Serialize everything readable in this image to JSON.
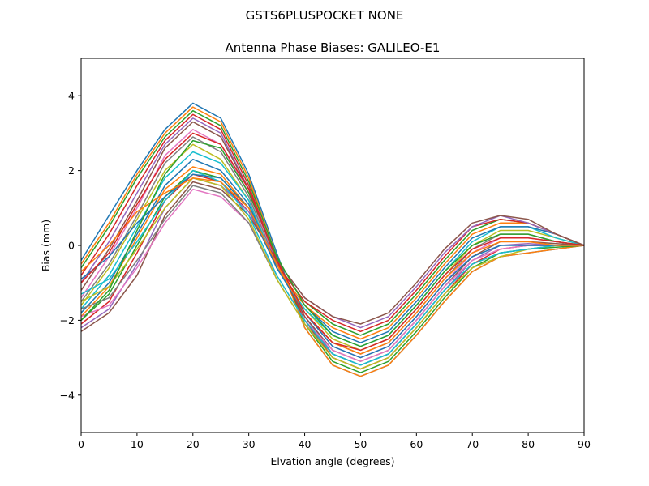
{
  "figure": {
    "suptitle": "GSTS6PLUSPOCKET NONE"
  },
  "chart_data": {
    "type": "line",
    "title": "Antenna Phase Biases: GALILEO-E1",
    "xlabel": "Elvation angle (degrees)",
    "ylabel": "Bias (mm)",
    "xlim": [
      0,
      90
    ],
    "ylim": [
      -5,
      5
    ],
    "xticks": [
      0,
      10,
      20,
      30,
      40,
      50,
      60,
      70,
      80,
      90
    ],
    "yticks": [
      -4,
      -2,
      0,
      2,
      4
    ],
    "grid": false,
    "x": [
      0,
      5,
      10,
      15,
      20,
      25,
      30,
      35,
      40,
      45,
      50,
      55,
      60,
      65,
      70,
      75,
      80,
      85,
      90
    ],
    "colors": [
      "#1f77b4",
      "#ff7f0e",
      "#2ca02c",
      "#d62728",
      "#9467bd",
      "#8c564b",
      "#e377c2",
      "#7f7f7f",
      "#bcbd22",
      "#17becf"
    ],
    "series": [
      {
        "values": [
          -0.4,
          0.8,
          2.0,
          3.1,
          3.8,
          3.4,
          1.9,
          -0.2,
          -2.2,
          -3.2,
          -3.5,
          -3.2,
          -2.4,
          -1.5,
          -0.7,
          -0.3,
          -0.2,
          -0.1,
          0
        ]
      },
      {
        "values": [
          -0.5,
          0.6,
          1.9,
          3.0,
          3.7,
          3.3,
          1.8,
          -0.3,
          -2.2,
          -3.2,
          -3.5,
          -3.2,
          -2.4,
          -1.5,
          -0.7,
          -0.3,
          -0.2,
          -0.1,
          0
        ]
      },
      {
        "values": [
          -0.6,
          0.5,
          1.8,
          2.9,
          3.6,
          3.2,
          1.7,
          -0.3,
          -2.1,
          -3.1,
          -3.4,
          -3.1,
          -2.3,
          -1.4,
          -0.6,
          -0.2,
          -0.1,
          -0.05,
          0
        ]
      },
      {
        "values": [
          -0.8,
          0.3,
          1.6,
          2.8,
          3.5,
          3.1,
          1.6,
          -0.4,
          -2.0,
          -3.0,
          -3.3,
          -3.0,
          -2.2,
          -1.3,
          -0.5,
          -0.1,
          0.0,
          0.0,
          0
        ]
      },
      {
        "values": [
          -1.0,
          0.1,
          1.4,
          2.7,
          3.4,
          3.0,
          1.5,
          -0.4,
          -1.9,
          -2.9,
          -3.2,
          -2.9,
          -2.1,
          -1.2,
          -0.4,
          0.0,
          0.05,
          0.0,
          0
        ]
      },
      {
        "values": [
          -1.2,
          -0.1,
          1.2,
          2.6,
          3.3,
          2.9,
          1.5,
          -0.5,
          -1.9,
          -2.8,
          -3.1,
          -2.8,
          -2.0,
          -1.1,
          -0.3,
          0.1,
          0.1,
          0.05,
          0
        ]
      },
      {
        "values": [
          -1.4,
          -0.3,
          1.0,
          2.4,
          3.1,
          2.7,
          1.4,
          -0.5,
          -1.8,
          -2.7,
          -3.0,
          -2.7,
          -1.9,
          -1.0,
          -0.2,
          0.2,
          0.2,
          0.1,
          0
        ]
      },
      {
        "values": [
          -1.5,
          -0.5,
          0.8,
          2.2,
          2.9,
          2.5,
          1.3,
          -0.5,
          -1.8,
          -2.6,
          -2.9,
          -2.6,
          -1.8,
          -0.9,
          -0.1,
          0.3,
          0.3,
          0.1,
          0
        ]
      },
      {
        "values": [
          -1.6,
          -0.6,
          0.7,
          2.0,
          2.7,
          2.3,
          1.2,
          -0.6,
          -1.7,
          -2.5,
          -2.8,
          -2.5,
          -1.7,
          -0.8,
          0.0,
          0.4,
          0.4,
          0.2,
          0
        ]
      },
      {
        "values": [
          -1.7,
          -0.8,
          0.5,
          1.8,
          2.5,
          2.2,
          1.2,
          -0.6,
          -1.7,
          -2.4,
          -2.7,
          -2.4,
          -1.6,
          -0.7,
          0.1,
          0.5,
          0.5,
          0.2,
          0
        ]
      },
      {
        "values": [
          -1.8,
          -1.0,
          0.3,
          1.6,
          2.3,
          2.0,
          1.1,
          -0.6,
          -1.6,
          -2.3,
          -2.6,
          -2.3,
          -1.5,
          -0.6,
          0.2,
          0.5,
          0.5,
          0.3,
          0
        ]
      },
      {
        "values": [
          -1.9,
          -1.1,
          0.2,
          1.5,
          2.1,
          1.9,
          1.0,
          -0.6,
          -1.6,
          -2.2,
          -2.5,
          -2.2,
          -1.4,
          -0.5,
          0.3,
          0.6,
          0.6,
          0.3,
          0
        ]
      },
      {
        "values": [
          -2.0,
          -1.3,
          0.0,
          1.3,
          2.0,
          1.8,
          1.0,
          -0.5,
          -1.5,
          -2.1,
          -2.4,
          -2.1,
          -1.3,
          -0.4,
          0.4,
          0.7,
          0.6,
          0.3,
          0
        ]
      },
      {
        "values": [
          -2.1,
          -1.5,
          -0.2,
          1.2,
          1.9,
          1.7,
          0.9,
          -0.5,
          -1.5,
          -2.0,
          -2.3,
          -2.0,
          -1.2,
          -0.3,
          0.5,
          0.7,
          0.6,
          0.3,
          0
        ]
      },
      {
        "values": [
          -2.2,
          -1.7,
          -0.5,
          1.0,
          1.8,
          1.6,
          0.9,
          -0.4,
          -1.4,
          -1.9,
          -2.2,
          -1.9,
          -1.1,
          -0.2,
          0.5,
          0.8,
          0.6,
          0.3,
          0
        ]
      },
      {
        "values": [
          -2.3,
          -1.8,
          -0.8,
          0.8,
          1.7,
          1.5,
          0.8,
          -0.4,
          -1.4,
          -1.9,
          -2.1,
          -1.8,
          -1.0,
          -0.1,
          0.6,
          0.8,
          0.7,
          0.3,
          0
        ]
      },
      {
        "values": [
          -1.9,
          -1.6,
          -0.6,
          0.6,
          1.5,
          1.3,
          0.6,
          -0.8,
          -2.0,
          -2.8,
          -3.1,
          -2.8,
          -2.0,
          -1.1,
          -0.4,
          -0.1,
          0.0,
          0.0,
          0
        ]
      },
      {
        "values": [
          -1.7,
          -1.4,
          -0.4,
          0.7,
          1.6,
          1.4,
          0.6,
          -0.9,
          -2.1,
          -2.9,
          -3.2,
          -2.9,
          -2.1,
          -1.2,
          -0.5,
          -0.2,
          -0.1,
          0.0,
          0
        ]
      },
      {
        "values": [
          -1.5,
          -1.1,
          -0.1,
          1.0,
          1.8,
          1.6,
          0.7,
          -0.9,
          -2.1,
          -3.0,
          -3.3,
          -3.0,
          -2.2,
          -1.3,
          -0.6,
          -0.3,
          -0.1,
          0.0,
          0
        ]
      },
      {
        "values": [
          -1.3,
          -0.9,
          0.1,
          1.2,
          2.0,
          1.7,
          0.8,
          -0.8,
          -2.0,
          -2.9,
          -3.2,
          -2.9,
          -2.1,
          -1.2,
          -0.5,
          -0.2,
          -0.1,
          0.0,
          0
        ]
      },
      {
        "values": [
          -0.9,
          -0.3,
          0.6,
          1.3,
          1.9,
          1.8,
          1.0,
          -0.6,
          -1.8,
          -2.7,
          -3.0,
          -2.7,
          -1.9,
          -1.0,
          -0.3,
          0.0,
          0.0,
          0.0,
          0
        ]
      },
      {
        "values": [
          -0.7,
          0.0,
          0.9,
          1.4,
          1.8,
          1.7,
          1.0,
          -0.5,
          -1.8,
          -2.6,
          -2.9,
          -2.6,
          -1.8,
          -0.9,
          -0.2,
          0.1,
          0.1,
          0.0,
          0
        ]
      },
      {
        "values": [
          -2.0,
          -1.2,
          0.4,
          1.9,
          2.8,
          2.6,
          1.4,
          -0.3,
          -1.6,
          -2.4,
          -2.7,
          -2.4,
          -1.6,
          -0.7,
          0.0,
          0.3,
          0.3,
          0.1,
          0
        ]
      },
      {
        "values": [
          -1.0,
          -0.2,
          1.1,
          2.3,
          3.0,
          2.7,
          1.5,
          -0.4,
          -1.8,
          -2.6,
          -2.8,
          -2.5,
          -1.7,
          -0.8,
          -0.1,
          0.2,
          0.2,
          0.1,
          0
        ]
      }
    ]
  }
}
